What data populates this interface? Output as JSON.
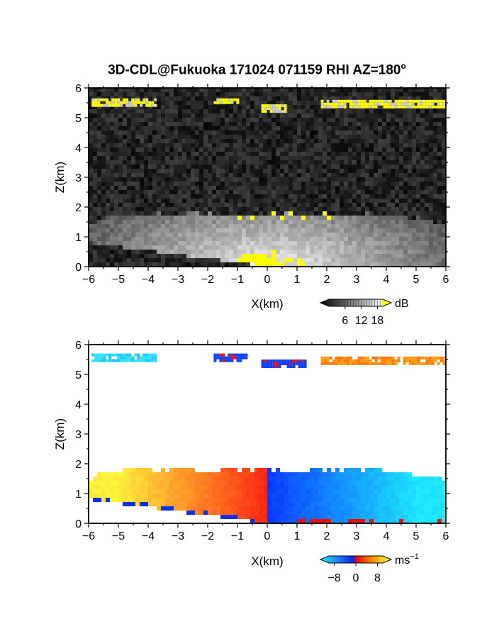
{
  "title": {
    "main": "3D-CDL@Fukuoka 171024 071159 RHI AZ=180",
    "degree_sup": "o"
  },
  "colors": {
    "gray_low": "#111111",
    "gray_high": "#f0f0f0",
    "saturation_yellow": "#ffff00",
    "vel_negative": "#0a3cff",
    "vel_negative_light": "#19d2ff",
    "vel_zero": "#e61010",
    "vel_positive": "#ffb400",
    "vel_positive_light": "#ffff32"
  },
  "chart_data": [
    {
      "type": "heatmap",
      "name_key": "intensity",
      "xlabel": "X(km)",
      "ylabel": "Z(km)",
      "xlim": [
        -6,
        6
      ],
      "ylim": [
        0,
        6
      ],
      "xticks": [
        "-6",
        "-5",
        "-4",
        "-3",
        "-2",
        "-1",
        "0",
        "1",
        "2",
        "3",
        "4",
        "5",
        "6"
      ],
      "yticks": [
        "0",
        "1",
        "2",
        "3",
        "4",
        "5",
        "6"
      ],
      "colorbar": {
        "unit": "dB",
        "ticks": [
          "6",
          "12",
          "18"
        ],
        "range": [
          0,
          20
        ]
      },
      "layers": {
        "boundary_layer_top_km": 1.75,
        "upper_cloud_bands": [
          {
            "x": [
              -5.9,
              -3.8
            ],
            "z": [
              5.45,
              5.65
            ]
          },
          {
            "x": [
              -1.8,
              -1.0
            ],
            "z": [
              5.5,
              5.65
            ]
          },
          {
            "x": [
              -0.2,
              0.6
            ],
            "z": [
              5.25,
              5.45
            ]
          },
          {
            "x": [
              1.8,
              6.0
            ],
            "z": [
              5.35,
              5.6
            ]
          }
        ]
      }
    },
    {
      "type": "heatmap",
      "name_key": "velocity",
      "xlabel": "X(km)",
      "ylabel": "Z(km)",
      "xlim": [
        -6,
        6
      ],
      "ylim": [
        0,
        6
      ],
      "xticks": [
        "-6",
        "-5",
        "-4",
        "-3",
        "-2",
        "-1",
        "0",
        "1",
        "2",
        "3",
        "4",
        "5",
        "6"
      ],
      "yticks": [
        "0",
        "1",
        "2",
        "3",
        "4",
        "5",
        "6"
      ],
      "colorbar": {
        "unit": "ms",
        "unit_sup": "−1",
        "ticks": [
          "−8",
          "0",
          "8"
        ],
        "range": [
          -10,
          10
        ]
      },
      "layers": {
        "boundary_layer_top_km": 1.8,
        "upper_cloud_bands": [
          {
            "x": [
              -5.9,
              -3.8
            ],
            "z": [
              5.45,
              5.7
            ],
            "v": -8
          },
          {
            "x": [
              -1.8,
              -0.7
            ],
            "z": [
              5.5,
              5.7
            ],
            "v": -4
          },
          {
            "x": [
              -0.2,
              1.3
            ],
            "z": [
              5.25,
              5.5
            ],
            "v": -3
          },
          {
            "x": [
              1.8,
              6.0
            ],
            "z": [
              5.35,
              5.6
            ],
            "v": 6
          }
        ]
      }
    }
  ]
}
